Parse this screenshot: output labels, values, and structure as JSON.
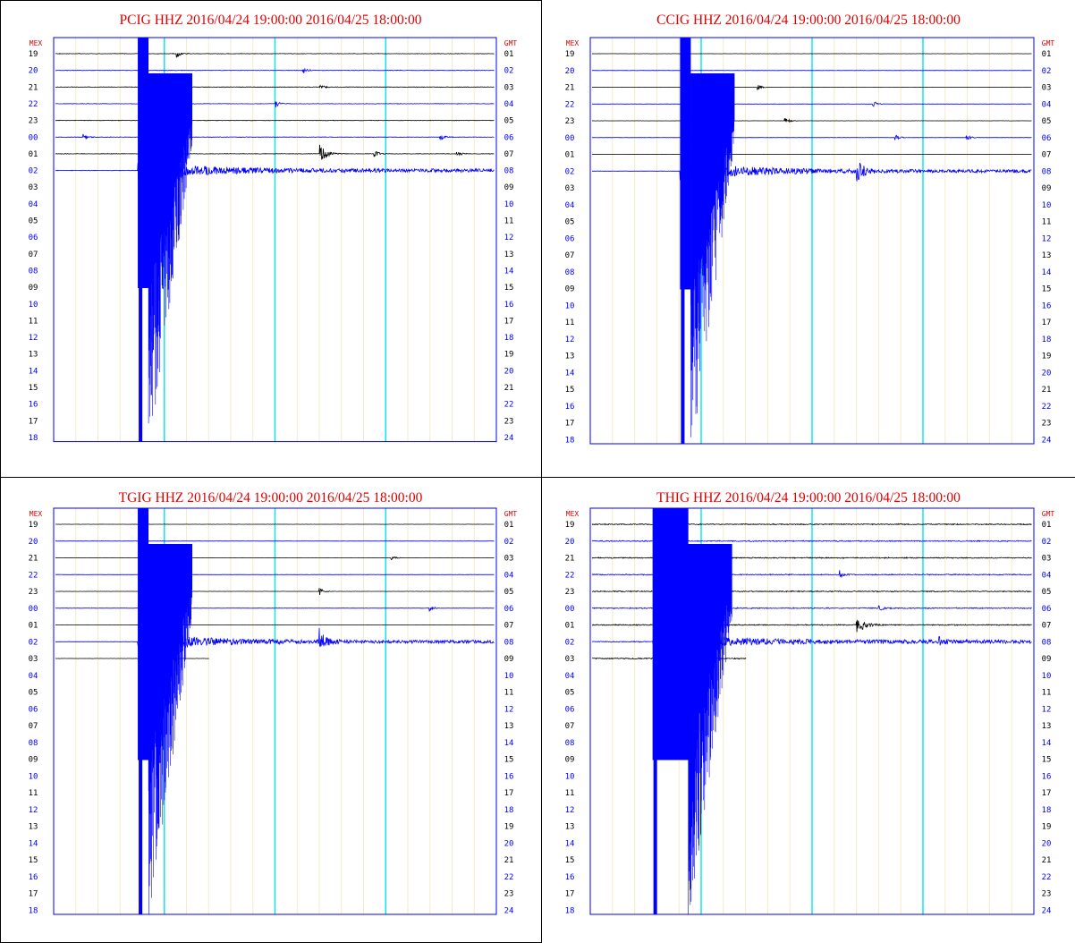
{
  "labels": {
    "mex_header": "MEX",
    "gmt_header": "GMT",
    "mex_hours": [
      "19",
      "20",
      "21",
      "22",
      "23",
      "00",
      "01",
      "02",
      "03",
      "04",
      "05",
      "06",
      "07",
      "08",
      "09",
      "10",
      "11",
      "12",
      "13",
      "14",
      "15",
      "16",
      "17",
      "18"
    ],
    "gmt_hours": [
      "01",
      "02",
      "03",
      "04",
      "05",
      "06",
      "07",
      "08",
      "09",
      "10",
      "11",
      "12",
      "13",
      "14",
      "15",
      "16",
      "17",
      "18",
      "19",
      "20",
      "21",
      "22",
      "23",
      "24"
    ]
  },
  "colors": {
    "title": "#e00000",
    "trace_even": "#000000",
    "trace_odd": "#0000ff",
    "frame": "#0000ff",
    "grid_minor": "#f2ebc8",
    "grid_major": "#00e5ee"
  },
  "chart_data": [
    {
      "type": "seismogram",
      "title": "PCIG HHZ 2016/04/24 19:00:00 2016/04/25 18:00:00",
      "station": "PCIG",
      "rows_recorded": 8,
      "event_onset_minute": 15,
      "event_big_extent_rows": 23.6,
      "event_above_rows": 1.0,
      "aftershock_minute": 48,
      "aftershock_row": 6,
      "local_events": [
        [
          0,
          22
        ],
        [
          1,
          45
        ],
        [
          2,
          48
        ],
        [
          3,
          40
        ],
        [
          5,
          5
        ],
        [
          5,
          70
        ],
        [
          6,
          58
        ],
        [
          6,
          73
        ]
      ],
      "noise_level": 0.25
    },
    {
      "type": "seismogram",
      "title": "CCIG HHZ 2016/04/24 19:00:00 2016/04/25 18:00:00",
      "station": "CCIG",
      "rows_recorded": 8,
      "event_onset_minute": 16,
      "event_big_extent_rows": 23.5,
      "event_above_rows": 1.0,
      "aftershock_minute": 48,
      "aftershock_row": 7,
      "local_events": [
        [
          2,
          30
        ],
        [
          3,
          51
        ],
        [
          4,
          35
        ],
        [
          5,
          68
        ],
        [
          5,
          55
        ]
      ],
      "noise_level": 0.12
    },
    {
      "type": "seismogram",
      "title": "TGIG HHZ 2016/04/24 19:00:00 2016/04/25 18:00:00",
      "station": "TGIG",
      "rows_recorded": 9,
      "event_onset_minute": 15,
      "event_big_extent_rows": 23.5,
      "event_above_rows": 1.0,
      "aftershock_minute": 48,
      "aftershock_row": 7,
      "local_events": [
        [
          5,
          68
        ],
        [
          4,
          48
        ],
        [
          2,
          61
        ]
      ],
      "noise_level": 0.12
    },
    {
      "type": "seismogram",
      "title": "THIG HHZ 2016/04/24 19:00:00 2016/04/25 18:00:00",
      "station": "THIG",
      "rows_recorded": 9,
      "event_onset_minute": 11,
      "event_big_extent_rows": 23.5,
      "event_above_rows": 1.0,
      "aftershock_minute": 48,
      "aftershock_row": 6,
      "local_events": [
        [
          5,
          52
        ],
        [
          3,
          45
        ],
        [
          7,
          63
        ]
      ],
      "noise_level": 0.5
    }
  ]
}
